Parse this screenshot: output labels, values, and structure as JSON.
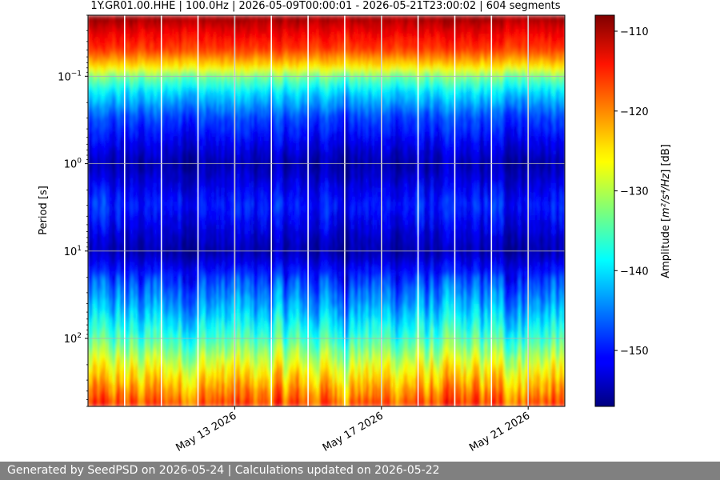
{
  "chart_data": {
    "type": "heatmap",
    "title": "1Y.GR01.00.HHE | 100.0Hz | 2026-05-09T00:00:01 - 2026-05-21T23:00:02 | 604 segments",
    "ylabel": "Period [s]",
    "xlabel": "",
    "y_scale": "log",
    "y_inverted": true,
    "ylim": [
      0.02,
      600
    ],
    "xlim": [
      "2026-05-09",
      "2026-05-22"
    ],
    "x_tick_labels": [
      "May 13 2026",
      "May 17 2026",
      "May 21 2026"
    ],
    "x_tick_dates": [
      "2026-05-13",
      "2026-05-17",
      "2026-05-21"
    ],
    "y_ticks": [
      {
        "base": "10",
        "exp": "−1",
        "value": 0.1
      },
      {
        "base": "10",
        "exp": "0",
        "value": 1
      },
      {
        "base": "10",
        "exp": "1",
        "value": 10
      },
      {
        "base": "10",
        "exp": "2",
        "value": 100
      }
    ],
    "grid": true,
    "colormap": "jet",
    "colorbar": {
      "label_text": "Amplitude [",
      "label_units": "m²/s⁴/Hz",
      "label_suffix": "] [dB]",
      "range": [
        -157,
        -108
      ],
      "ticks": [
        "−110",
        "−120",
        "−130",
        "−140",
        "−150"
      ],
      "tick_values": [
        -110,
        -120,
        -130,
        -140,
        -150
      ]
    },
    "amplitude_profile_db": [
      {
        "period": 0.02,
        "db": -109
      },
      {
        "period": 0.03,
        "db": -113
      },
      {
        "period": 0.05,
        "db": -117
      },
      {
        "period": 0.08,
        "db": -126
      },
      {
        "period": 0.1,
        "db": -133
      },
      {
        "period": 0.15,
        "db": -140
      },
      {
        "period": 0.3,
        "db": -148
      },
      {
        "period": 0.5,
        "db": -151
      },
      {
        "period": 1,
        "db": -155
      },
      {
        "period": 3,
        "db": -150
      },
      {
        "period": 6,
        "db": -153
      },
      {
        "period": 10,
        "db": -155
      },
      {
        "period": 20,
        "db": -149
      },
      {
        "period": 50,
        "db": -142
      },
      {
        "period": 100,
        "db": -136
      },
      {
        "period": 200,
        "db": -128
      },
      {
        "period": 400,
        "db": -121
      },
      {
        "period": 600,
        "db": -117
      }
    ],
    "gaps": [
      "2026-05-10T00:00",
      "2026-05-11T00:00",
      "2026-05-12T00:00",
      "2026-05-13T00:00",
      "2026-05-14T00:00",
      "2026-05-15T00:00",
      "2026-05-16T00:00",
      "2026-05-17T00:00",
      "2026-05-18T00:00",
      "2026-05-19T00:00",
      "2026-05-20T00:00",
      "2026-05-21T00:00"
    ]
  },
  "colors": {
    "background": "#ffffff",
    "footer_bg": "#808080",
    "footer_text": "#ffffff",
    "grid": "#b0b0b0"
  },
  "footer": {
    "text": "Generated by SeedPSD on 2026-05-24 | Calculations updated on 2026-05-22"
  }
}
